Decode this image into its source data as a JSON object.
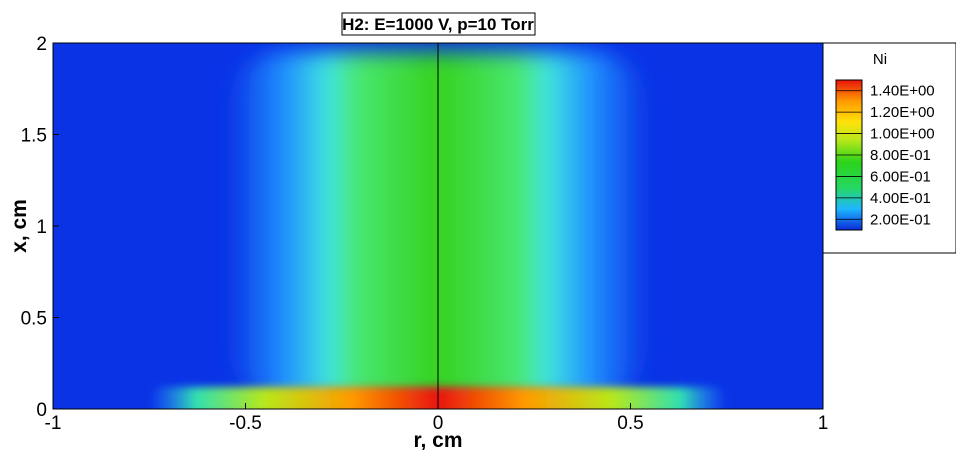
{
  "chart_data": {
    "type": "heatmap",
    "title": "H2: E=1000 V, p=10 Torr",
    "xlabel": "r, cm",
    "ylabel": "x, cm",
    "xlim": [
      -1,
      1
    ],
    "ylim": [
      0,
      2
    ],
    "x_ticks": [
      "-1",
      "-0.5",
      "0",
      "0.5",
      "1"
    ],
    "y_ticks": [
      "0",
      "0.5",
      "1",
      "1.5",
      "2"
    ],
    "legend": {
      "title": "Ni",
      "placement": "right",
      "levels": [
        "1.40E+00",
        "1.20E+00",
        "1.00E+00",
        "8.00E-01",
        "6.00E-01",
        "4.00E-01",
        "2.00E-01"
      ],
      "values": [
        1.4,
        1.2,
        1.0,
        0.8,
        0.6,
        0.4,
        0.2
      ],
      "colormap": [
        "#0a2bd8",
        "#1fb6ff",
        "#26d864",
        "#2ad31a",
        "#b8e81a",
        "#ffe20a",
        "#ff9a00",
        "#e8140a"
      ]
    },
    "field": {
      "background": 0.05,
      "core": {
        "r_half_width": 0.44,
        "x_range": [
          0.05,
          1.95
        ],
        "value": 0.72
      },
      "wall_layer": {
        "r_half_width": 0.75,
        "x_range": [
          0,
          0.12
        ],
        "peak_value": 1.45
      }
    },
    "centerline_r": 0,
    "grid": false
  }
}
